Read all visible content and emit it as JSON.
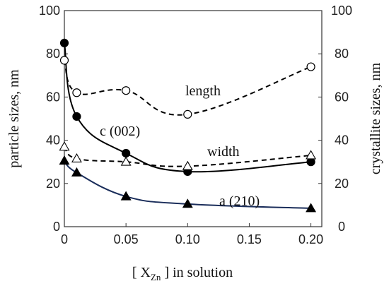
{
  "chart_data": {
    "type": "scatter",
    "x_ticks": [
      "0",
      "0.05",
      "0.10",
      "0.15",
      "0.20"
    ],
    "xlim": [
      0,
      0.21
    ],
    "ylim_left": [
      0,
      100
    ],
    "ylim_right": [
      0,
      100
    ],
    "y_ticks": [
      "0",
      "20",
      "40",
      "60",
      "80",
      "100"
    ],
    "y2_ticks": [
      "0",
      "20",
      "40",
      "60",
      "80",
      "100"
    ],
    "ylabel_left": "particle sizes, nm",
    "ylabel_right": "crystallite sizes, nm",
    "xlabel": {
      "pre": "[ X",
      "sub": "Zn",
      "post": " ] in solution"
    },
    "grid": false,
    "annotations": {
      "length": "length",
      "c": "c (002)",
      "width": "width",
      "a": "a (210)"
    },
    "series": [
      {
        "marker": "circle-filled",
        "line": "solid",
        "color": "#000000",
        "x": [
          0,
          0.01,
          0.05,
          0.1,
          0.2
        ],
        "y": [
          85,
          51,
          34,
          25.5,
          30
        ]
      },
      {
        "marker": "circle-open",
        "line": "dashed",
        "color": "#000000",
        "x": [
          0,
          0.01,
          0.05,
          0.1,
          0.2
        ],
        "y": [
          77,
          62,
          63,
          52,
          74
        ]
      },
      {
        "marker": "triangle-open",
        "line": "dashed",
        "color": "#000000",
        "x": [
          0,
          0.01,
          0.05,
          0.1,
          0.2
        ],
        "y": [
          37,
          31.5,
          30,
          28,
          33
        ]
      },
      {
        "marker": "triangle-filled",
        "line": "solid",
        "color": "#1a2d5a",
        "x": [
          0,
          0.01,
          0.05,
          0.1,
          0.2
        ],
        "y": [
          30.5,
          25,
          14,
          10.5,
          8.5
        ]
      }
    ]
  }
}
